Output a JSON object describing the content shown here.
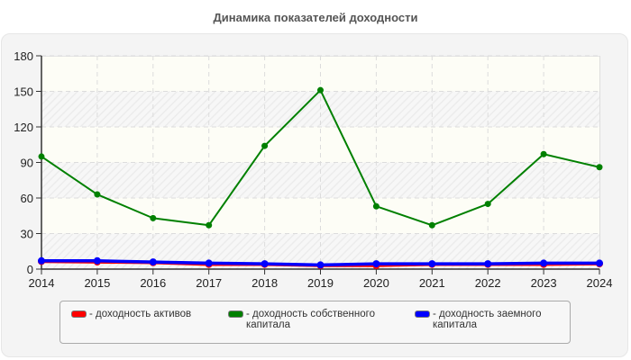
{
  "title": "Динамика показателей доходности",
  "chart_data": {
    "type": "line",
    "title": "Динамика показателей доходности",
    "xlabel": "",
    "ylabel": "",
    "x": [
      2014,
      2015,
      2016,
      2017,
      2018,
      2019,
      2020,
      2021,
      2022,
      2023,
      2024
    ],
    "ylim": [
      0,
      180
    ],
    "yticks": [
      0,
      30,
      60,
      90,
      120,
      150,
      180
    ],
    "grid": true,
    "legend_position": "bottom",
    "series": [
      {
        "name": "- доходность активов",
        "color": "#ff0000",
        "values": [
          6.5,
          6,
          5.5,
          4,
          4,
          3,
          3,
          4,
          4,
          4,
          4.5
        ]
      },
      {
        "name": "- доходность собственного капитала",
        "color": "#008000",
        "values": [
          95,
          63,
          43,
          37,
          104,
          151,
          53,
          37,
          55,
          97,
          86
        ]
      },
      {
        "name": "- доходность заемного капитала",
        "color": "#0000ff",
        "values": [
          7,
          7,
          6,
          5,
          4.5,
          3.5,
          4.5,
          4.5,
          4.5,
          5,
          5
        ]
      }
    ]
  },
  "legend": [
    {
      "label": "- доходность активов",
      "color": "#ff0000"
    },
    {
      "label": "- доходность собственного\nкапитала",
      "color": "#008000"
    },
    {
      "label": "- доходность заемного\nкапитала",
      "color": "#0000ff"
    }
  ]
}
